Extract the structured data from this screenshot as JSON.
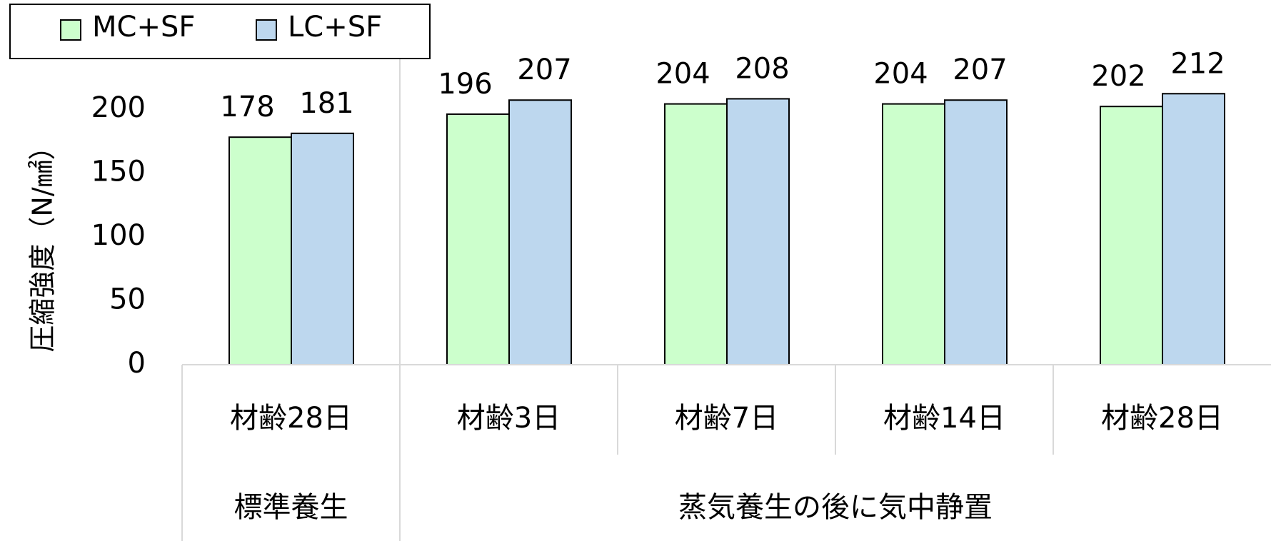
{
  "chart_data": {
    "type": "bar",
    "y_label": "圧縮強度（N/㎟）",
    "groups": [
      {
        "label": "標準養生",
        "categories": [
          "材齢28日"
        ]
      },
      {
        "label": "蒸気養生の後に気中静置",
        "categories": [
          "材齢3日",
          "材齢7日",
          "材齢14日",
          "材齢28日"
        ]
      }
    ],
    "series": [
      {
        "name": "MC+SF",
        "color": "#ccffcc",
        "values": [
          178,
          196,
          204,
          204,
          202
        ]
      },
      {
        "name": "LC+SF",
        "color": "#bdd7ee",
        "values": [
          181,
          207,
          208,
          207,
          212
        ]
      }
    ],
    "ylim": [
      0,
      225
    ],
    "yticks": [
      0,
      50,
      100,
      150,
      200
    ],
    "grid": false,
    "legend": "top-left"
  }
}
